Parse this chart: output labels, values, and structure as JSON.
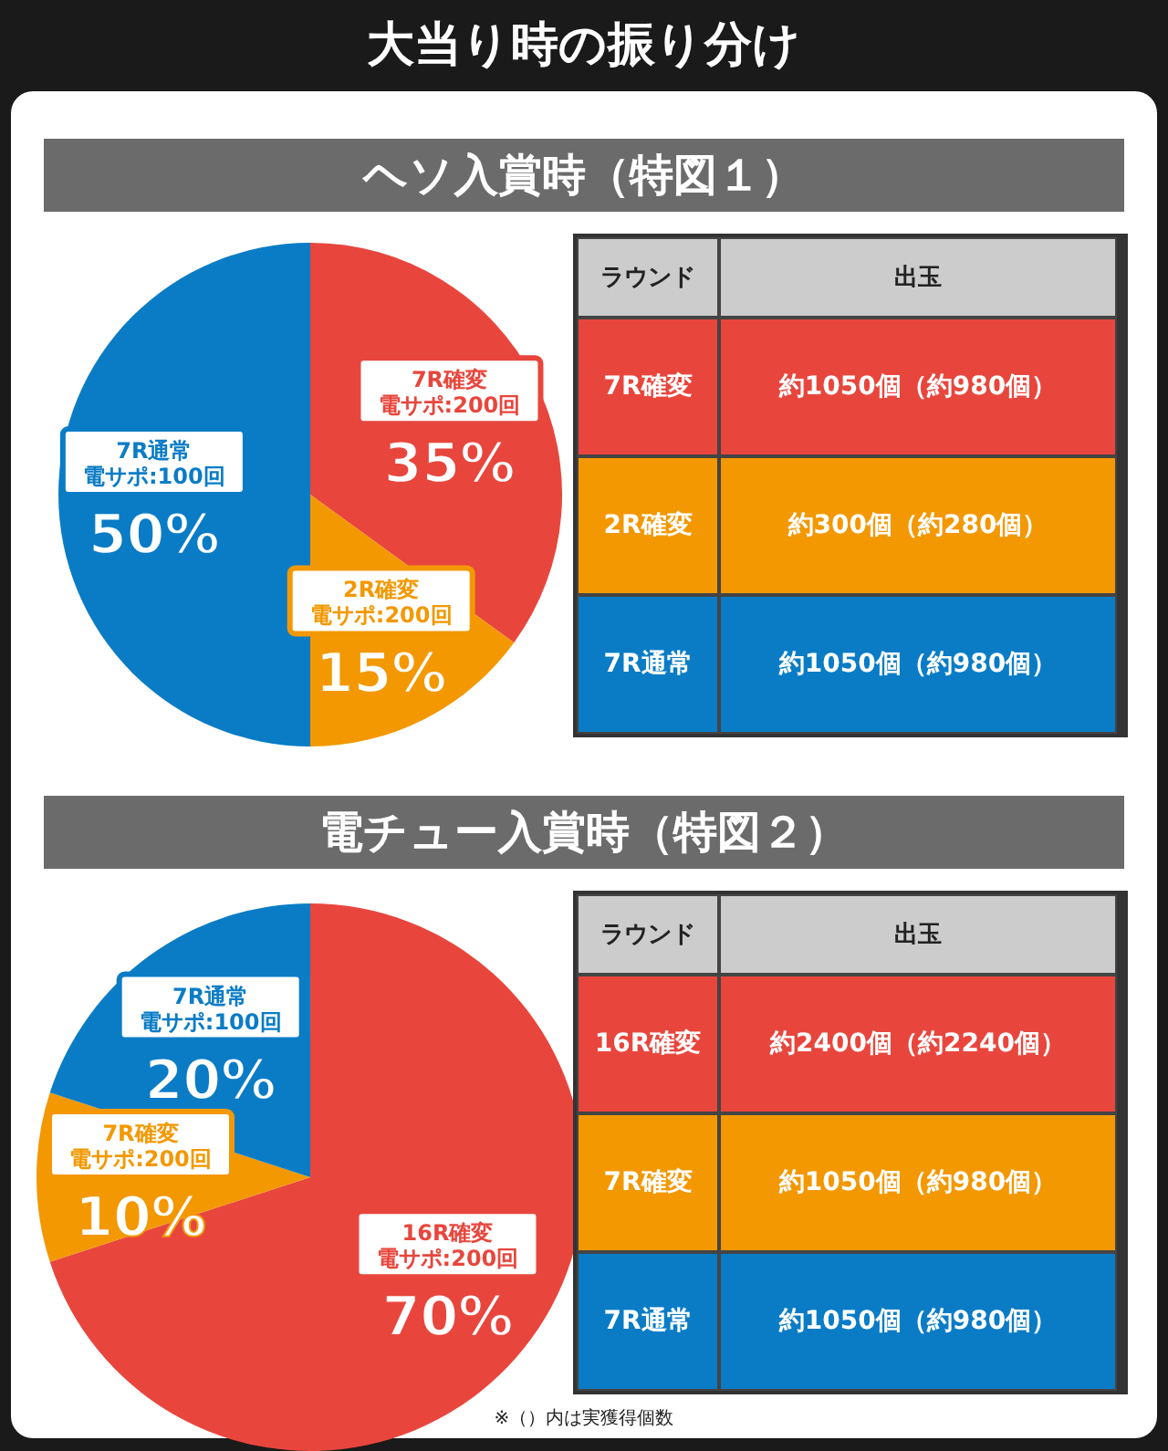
{
  "chart_data": [
    {
      "type": "pie",
      "title": "大当り時の振り分け",
      "subtitle": "ヘソ入賞時（特図１）",
      "categories": [
        "7R確変電サポ:200回",
        "2R確変電サポ:200回",
        "7R通常電サポ:100回"
      ],
      "values": [
        35,
        15,
        50
      ],
      "value_labels": [
        "35%",
        "15%",
        "50%"
      ],
      "colors": [
        "#e8463d",
        "#f39800",
        "#0a7cc6"
      ]
    },
    {
      "type": "other",
      "annotations": [
        "ラウンド",
        "出玉",
        "7R確変",
        "約1050個（約980個）",
        "2R確変",
        "約300個（約280個）",
        "7R通常",
        "約1050個（約980個）"
      ],
      "colors": [
        "#e8463d",
        "#f39800",
        "#0a7cc6"
      ]
    },
    {
      "type": "pie",
      "subtitle": "電チュー入賞時（特図２）",
      "categories": [
        "16R確変電サポ:200回",
        "7R確変電サポ:200回",
        "7R通常電サポ:100回"
      ],
      "values": [
        70,
        10,
        20
      ],
      "value_labels": [
        "70%",
        "10%",
        "20%"
      ],
      "colors": [
        "#e8463d",
        "#f39800",
        "#0a7cc6"
      ],
      "annotations": [
        "※（）内は実獲得個数"
      ]
    },
    {
      "type": "other",
      "annotations": [
        "ラウンド",
        "出玉",
        "16R確変",
        "約2400個（約2240個）",
        "7R確変",
        "約1050個（約980個）",
        "7R通常",
        "約1050個（約980個）"
      ],
      "colors": [
        "#e8463d",
        "#f39800",
        "#0a7cc6"
      ]
    }
  ]
}
